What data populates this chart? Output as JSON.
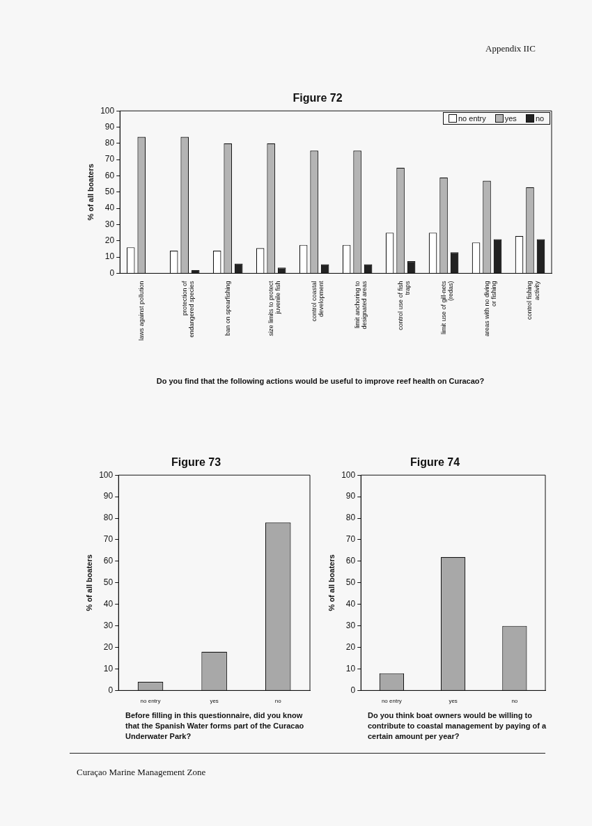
{
  "chart_data": [
    {
      "type": "bar",
      "title": "Figure 72",
      "ylabel": "% of all boaters",
      "xlabel": "Do you find that the following actions would be useful to improve reef health on Curacao?",
      "categories": [
        "laws against pollution",
        "protection of endangered species",
        "ban on spearfishing",
        "size limits to protect juvenile fish",
        "control coastal development",
        "limit anchoring to designated areas",
        "control use of fish traps",
        "limit use of gill-nets (redas)",
        "areas with no diving or fishing",
        "control fishing activity"
      ],
      "series": [
        {
          "name": "no entry",
          "color": "#ffffff",
          "values": [
            16,
            14,
            14,
            15.5,
            17.5,
            17.5,
            25,
            25,
            19,
            23
          ]
        },
        {
          "name": "yes",
          "color": "#b4b4b4",
          "values": [
            84,
            84,
            80,
            80,
            75.5,
            75.5,
            65,
            59,
            57,
            53
          ]
        },
        {
          "name": "no",
          "color": "#222222",
          "values": [
            0,
            2,
            6,
            3.5,
            5.5,
            5.5,
            7.5,
            13,
            21,
            21
          ]
        }
      ],
      "ylim": [
        0,
        100
      ],
      "yticks": [
        0,
        10,
        20,
        30,
        40,
        50,
        60,
        70,
        80,
        90,
        100
      ],
      "grid": false,
      "legend": "top right",
      "annotations": [
        "Appendix IIC"
      ]
    },
    {
      "type": "bar",
      "title": "Figure 73",
      "ylabel": "% of all boaters",
      "xlabel": "Before filling in this questionnaire, did you know that the Spanish Water forms part of the Curacao Underwater Park?",
      "categories": [
        "no entry",
        "yes",
        "no"
      ],
      "values": [
        4,
        18,
        78
      ],
      "color": "#a8a8a8",
      "ylim": [
        0,
        100
      ],
      "yticks": [
        0,
        10,
        20,
        30,
        40,
        50,
        60,
        70,
        80,
        90,
        100
      ],
      "grid": false
    },
    {
      "type": "bar",
      "title": "Figure 74",
      "ylabel": "% of all boaters",
      "xlabel": "Do you think boat owners would be willing to contribute to coastal management by paying of a certain amount per year?",
      "categories": [
        "no entry",
        "yes",
        "no"
      ],
      "values": [
        8,
        62,
        30
      ],
      "color": "#a8a8a8",
      "ylim": [
        0,
        100
      ],
      "yticks": [
        0,
        10,
        20,
        30,
        40,
        50,
        60,
        70,
        80,
        90,
        100
      ],
      "grid": false,
      "annotations": [
        "Curaçao Marine Management Zone"
      ]
    }
  ]
}
